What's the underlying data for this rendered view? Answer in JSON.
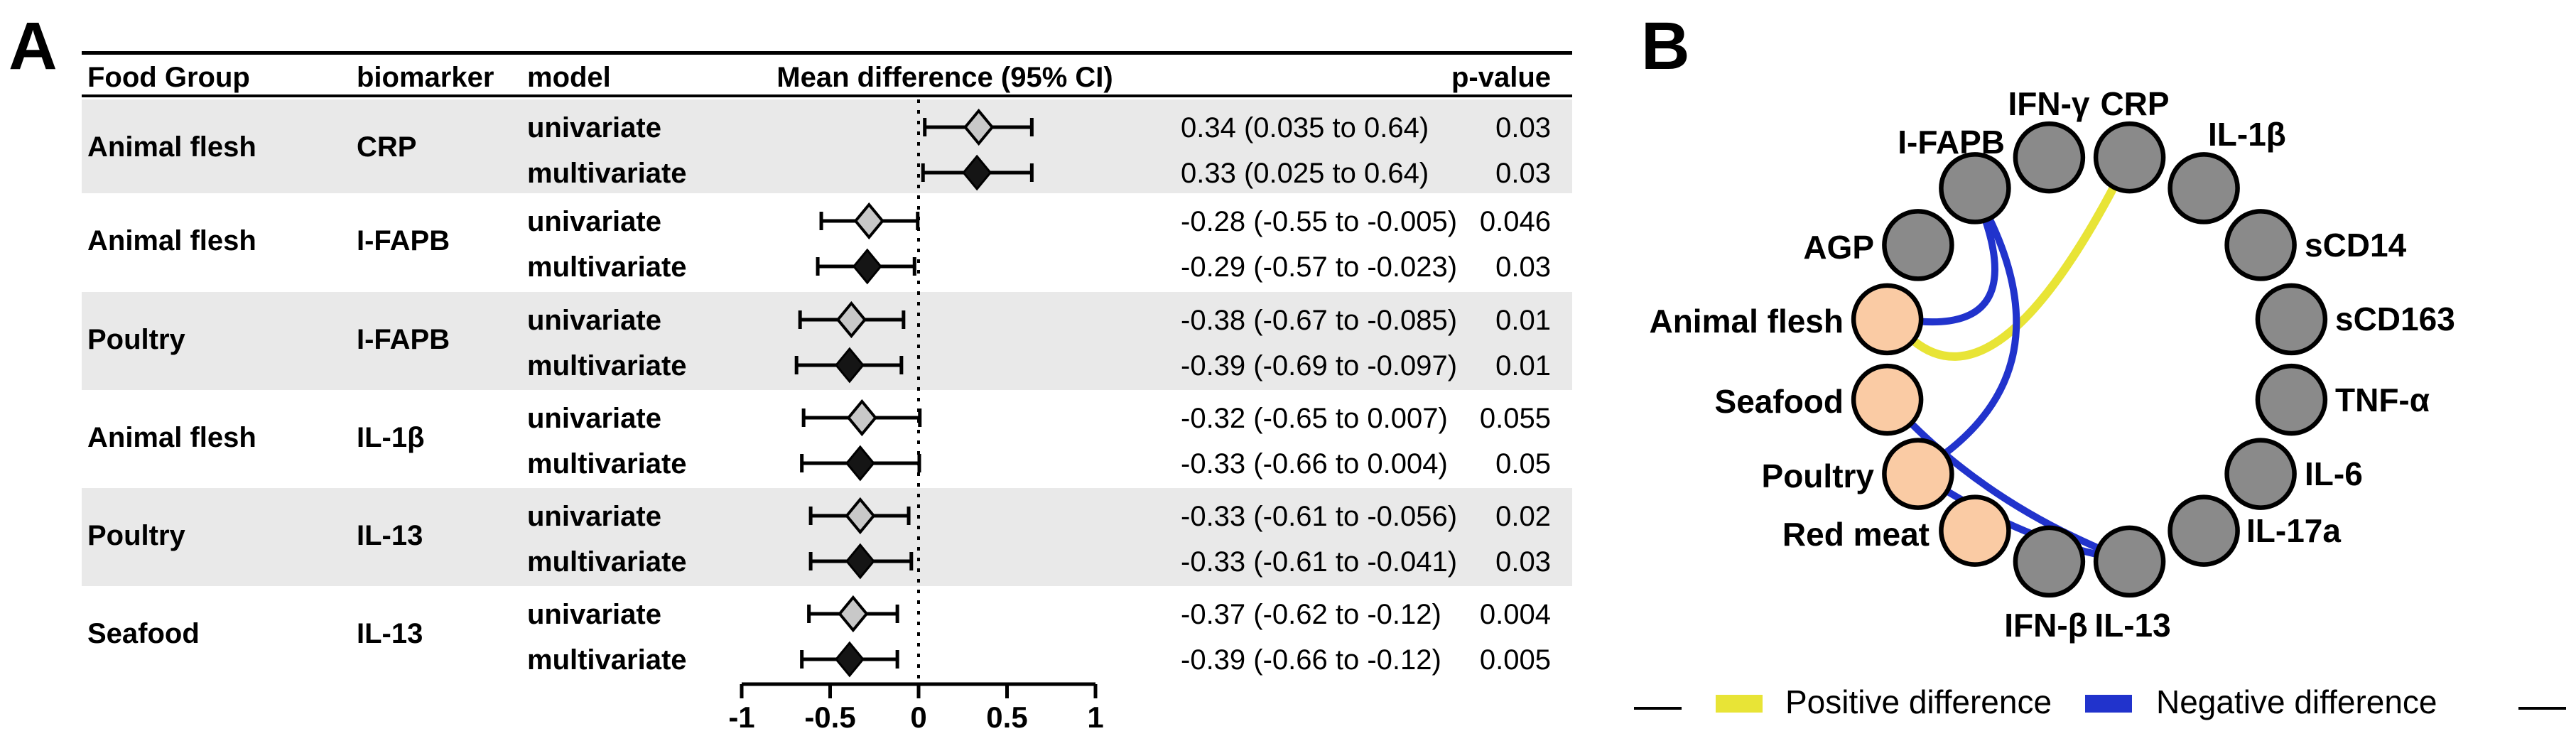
{
  "panelA": {
    "label": "A",
    "columns": {
      "food_group": "Food Group",
      "biomarker": "biomarker",
      "model": "model",
      "mean_diff": "Mean difference (95% CI)",
      "p_value": "p-value"
    },
    "groups": [
      {
        "food_group": "Animal flesh",
        "biomarker": "CRP",
        "shaded": true,
        "rows": [
          {
            "model": "univariate",
            "ci_text": "0.34 (0.035 to 0.64)",
            "p": "0.03",
            "mean": 0.34,
            "lo": 0.035,
            "hi": 0.64
          },
          {
            "model": "multivariate",
            "ci_text": "0.33 (0.025 to 0.64)",
            "p": "0.03",
            "mean": 0.33,
            "lo": 0.025,
            "hi": 0.64
          }
        ]
      },
      {
        "food_group": "Animal flesh",
        "biomarker": "I-FAPB",
        "shaded": false,
        "rows": [
          {
            "model": "univariate",
            "ci_text": "-0.28 (-0.55 to -0.005)",
            "p": "0.046",
            "mean": -0.28,
            "lo": -0.55,
            "hi": -0.005
          },
          {
            "model": "multivariate",
            "ci_text": "-0.29 (-0.57 to -0.023)",
            "p": "0.03",
            "mean": -0.29,
            "lo": -0.57,
            "hi": -0.023
          }
        ]
      },
      {
        "food_group": "Poultry",
        "biomarker": "I-FAPB",
        "shaded": true,
        "rows": [
          {
            "model": "univariate",
            "ci_text": "-0.38 (-0.67 to -0.085)",
            "p": "0.01",
            "mean": -0.38,
            "lo": -0.67,
            "hi": -0.085
          },
          {
            "model": "multivariate",
            "ci_text": "-0.39 (-0.69 to -0.097)",
            "p": "0.01",
            "mean": -0.39,
            "lo": -0.69,
            "hi": -0.097
          }
        ]
      },
      {
        "food_group": "Animal flesh",
        "biomarker": "IL-1β",
        "shaded": false,
        "rows": [
          {
            "model": "univariate",
            "ci_text": "-0.32 (-0.65 to 0.007)",
            "p": "0.055",
            "mean": -0.32,
            "lo": -0.65,
            "hi": 0.007
          },
          {
            "model": "multivariate",
            "ci_text": "-0.33 (-0.66 to 0.004)",
            "p": "0.05",
            "mean": -0.33,
            "lo": -0.66,
            "hi": 0.004
          }
        ]
      },
      {
        "food_group": "Poultry",
        "biomarker": "IL-13",
        "shaded": true,
        "rows": [
          {
            "model": "univariate",
            "ci_text": "-0.33 (-0.61 to -0.056)",
            "p": "0.02",
            "mean": -0.33,
            "lo": -0.61,
            "hi": -0.056
          },
          {
            "model": "multivariate",
            "ci_text": "-0.33 (-0.61 to -0.041)",
            "p": "0.03",
            "mean": -0.33,
            "lo": -0.61,
            "hi": -0.041
          }
        ]
      },
      {
        "food_group": "Seafood",
        "biomarker": "IL-13",
        "shaded": false,
        "rows": [
          {
            "model": "univariate",
            "ci_text": "-0.37 (-0.62 to -0.12)",
            "p": "0.004",
            "mean": -0.37,
            "lo": -0.62,
            "hi": -0.12
          },
          {
            "model": "multivariate",
            "ci_text": "-0.39 (-0.66 to -0.12)",
            "p": "0.005",
            "mean": -0.39,
            "lo": -0.66,
            "hi": -0.12
          }
        ]
      }
    ],
    "axis": {
      "ticks": [
        -1,
        -0.5,
        0,
        0.5,
        1
      ],
      "tick_labels": [
        "-1",
        "-0.5",
        "0",
        "0.5",
        "1"
      ],
      "range": [
        -1,
        1
      ]
    }
  },
  "panelB": {
    "label": "B",
    "nodes": [
      {
        "label": "CRP",
        "type": "biomarker"
      },
      {
        "label": "IL-1β",
        "type": "biomarker"
      },
      {
        "label": "sCD14",
        "type": "biomarker"
      },
      {
        "label": "sCD163",
        "type": "biomarker"
      },
      {
        "label": "TNF-α",
        "type": "biomarker"
      },
      {
        "label": "IL-6",
        "type": "biomarker"
      },
      {
        "label": "IL-17a",
        "type": "biomarker"
      },
      {
        "label": "IL-13",
        "type": "biomarker"
      },
      {
        "label": "IFN-β",
        "type": "biomarker"
      },
      {
        "label": "Red meat",
        "type": "food"
      },
      {
        "label": "Poultry",
        "type": "food"
      },
      {
        "label": "Seafood",
        "type": "food"
      },
      {
        "label": "Animal flesh",
        "type": "food"
      },
      {
        "label": "AGP",
        "type": "biomarker"
      },
      {
        "label": "I-FAPB",
        "type": "biomarker"
      },
      {
        "label": "IFN-γ",
        "type": "biomarker"
      }
    ],
    "edges": [
      {
        "from": "Animal flesh",
        "to": "CRP",
        "type": "positive"
      },
      {
        "from": "Animal flesh",
        "to": "I-FAPB",
        "type": "negative"
      },
      {
        "from": "Poultry",
        "to": "I-FAPB",
        "type": "negative"
      },
      {
        "from": "Seafood",
        "to": "IL-13",
        "type": "negative"
      },
      {
        "from": "Poultry",
        "to": "IL-13",
        "type": "negative"
      }
    ],
    "legend": [
      {
        "label": "Positive difference",
        "color": "#e8e436"
      },
      {
        "label": "Negative difference",
        "color": "#2133cc"
      }
    ]
  },
  "colors": {
    "positive": "#e8e436",
    "negative": "#2133cc",
    "band_shaded": "#e9e9e9",
    "uni_diamond": "#c8c8c8",
    "multi_diamond": "#151515",
    "node_biomarker": "#8a8a8a",
    "node_food": "#facba4",
    "node_stroke": "#000000"
  },
  "chart_data": [
    {
      "type": "scatter",
      "subtype": "forest_plot",
      "title": "Mean difference (95% CI)",
      "xlabel": "Mean difference",
      "xlim": [
        -1,
        1
      ],
      "x_ticks": [
        -1,
        -0.5,
        0,
        0.5,
        1
      ],
      "grid": false,
      "reference_line": 0,
      "rows": [
        {
          "food_group": "Animal flesh",
          "biomarker": "CRP",
          "model": "univariate",
          "mean": 0.34,
          "ci_low": 0.035,
          "ci_high": 0.64,
          "p_value": "0.03"
        },
        {
          "food_group": "Animal flesh",
          "biomarker": "CRP",
          "model": "multivariate",
          "mean": 0.33,
          "ci_low": 0.025,
          "ci_high": 0.64,
          "p_value": "0.03"
        },
        {
          "food_group": "Animal flesh",
          "biomarker": "I-FAPB",
          "model": "univariate",
          "mean": -0.28,
          "ci_low": -0.55,
          "ci_high": -0.005,
          "p_value": "0.046"
        },
        {
          "food_group": "Animal flesh",
          "biomarker": "I-FAPB",
          "model": "multivariate",
          "mean": -0.29,
          "ci_low": -0.57,
          "ci_high": -0.023,
          "p_value": "0.03"
        },
        {
          "food_group": "Poultry",
          "biomarker": "I-FAPB",
          "model": "univariate",
          "mean": -0.38,
          "ci_low": -0.67,
          "ci_high": -0.085,
          "p_value": "0.01"
        },
        {
          "food_group": "Poultry",
          "biomarker": "I-FAPB",
          "model": "multivariate",
          "mean": -0.39,
          "ci_low": -0.69,
          "ci_high": -0.097,
          "p_value": "0.01"
        },
        {
          "food_group": "Animal flesh",
          "biomarker": "IL-1β",
          "model": "univariate",
          "mean": -0.32,
          "ci_low": -0.65,
          "ci_high": 0.007,
          "p_value": "0.055"
        },
        {
          "food_group": "Animal flesh",
          "biomarker": "IL-1β",
          "model": "multivariate",
          "mean": -0.33,
          "ci_low": -0.66,
          "ci_high": 0.004,
          "p_value": "0.05"
        },
        {
          "food_group": "Poultry",
          "biomarker": "IL-13",
          "model": "univariate",
          "mean": -0.33,
          "ci_low": -0.61,
          "ci_high": -0.056,
          "p_value": "0.02"
        },
        {
          "food_group": "Poultry",
          "biomarker": "IL-13",
          "model": "multivariate",
          "mean": -0.33,
          "ci_low": -0.61,
          "ci_high": -0.041,
          "p_value": "0.03"
        },
        {
          "food_group": "Seafood",
          "biomarker": "IL-13",
          "model": "univariate",
          "mean": -0.37,
          "ci_low": -0.62,
          "ci_high": -0.12,
          "p_value": "0.004"
        },
        {
          "food_group": "Seafood",
          "biomarker": "IL-13",
          "model": "multivariate",
          "mean": -0.39,
          "ci_low": -0.66,
          "ci_high": -0.12,
          "p_value": "0.005"
        }
      ]
    },
    {
      "type": "scatter",
      "subtype": "circular_network",
      "title": "",
      "legend_position": "bottom",
      "nodes_clockwise_from_top_right": [
        "CRP",
        "IL-1β",
        "sCD14",
        "sCD163",
        "TNF-α",
        "IL-6",
        "IL-17a",
        "IL-13",
        "IFN-β",
        "Red meat",
        "Poultry",
        "Seafood",
        "Animal flesh",
        "AGP",
        "I-FAPB",
        "IFN-γ"
      ],
      "edges": [
        {
          "from": "Animal flesh",
          "to": "CRP",
          "sign": "positive"
        },
        {
          "from": "Animal flesh",
          "to": "I-FAPB",
          "sign": "negative"
        },
        {
          "from": "Poultry",
          "to": "I-FAPB",
          "sign": "negative"
        },
        {
          "from": "Seafood",
          "to": "IL-13",
          "sign": "negative"
        },
        {
          "from": "Poultry",
          "to": "IL-13",
          "sign": "negative"
        }
      ]
    }
  ]
}
